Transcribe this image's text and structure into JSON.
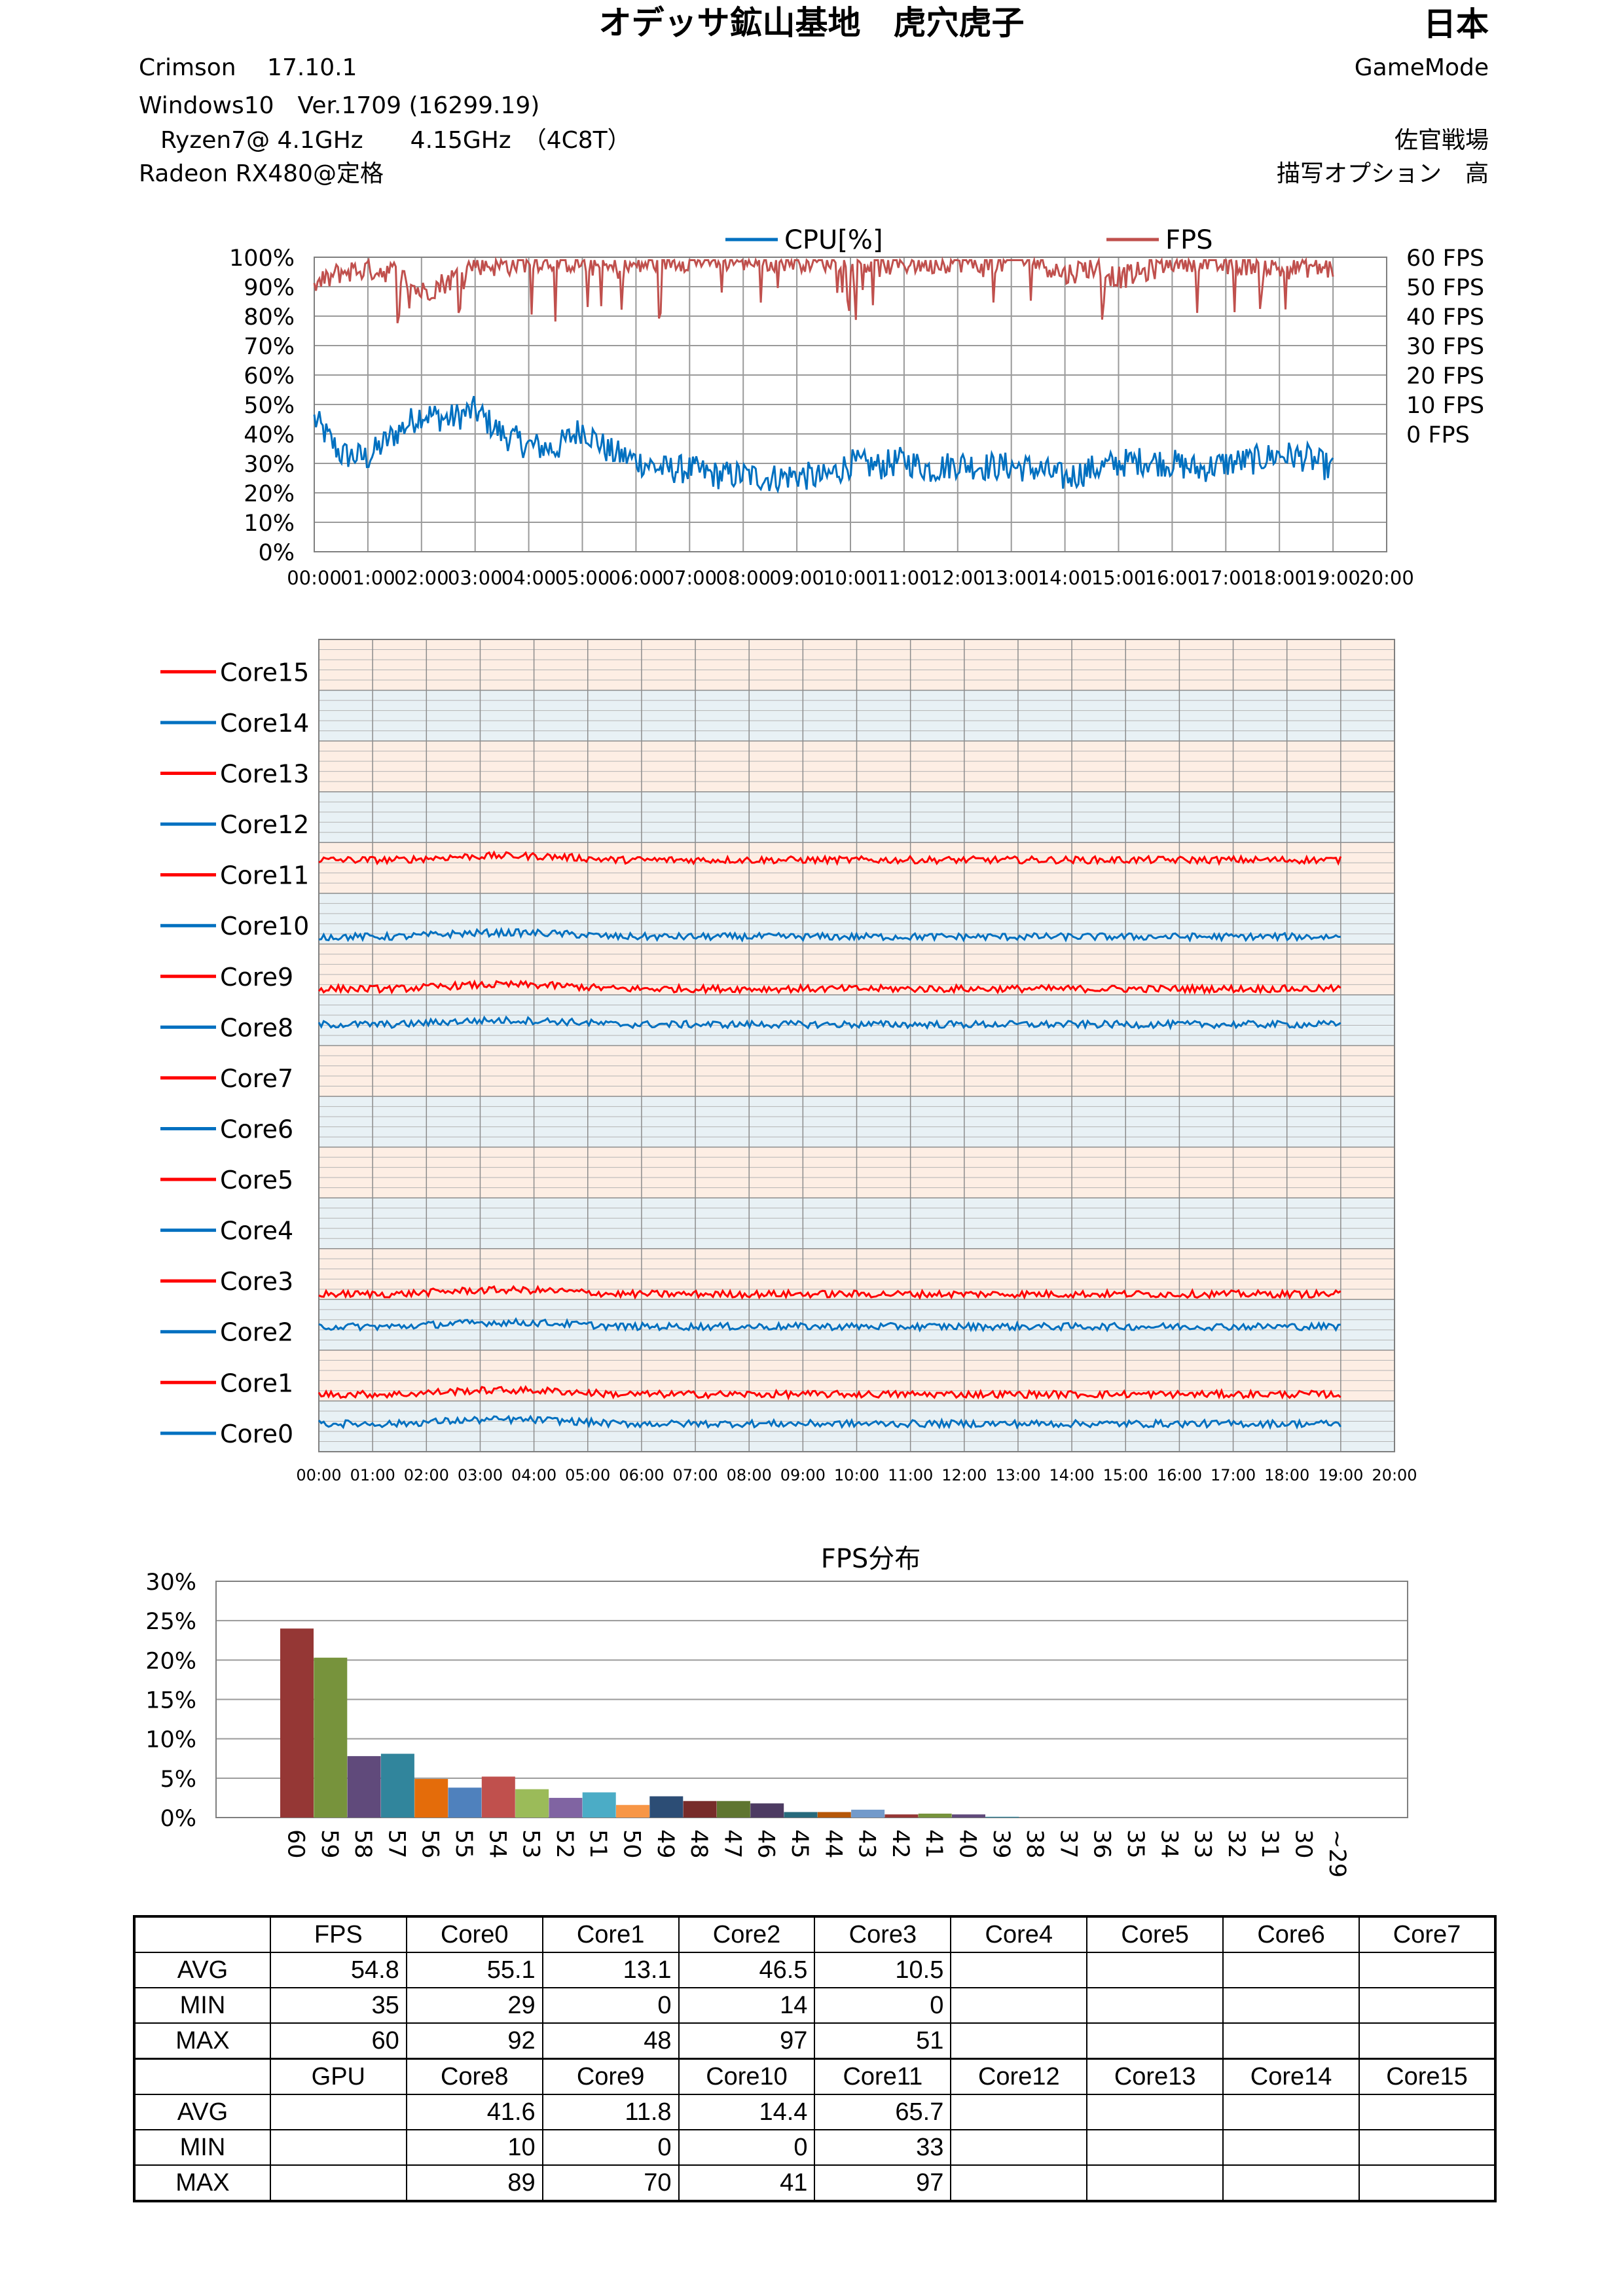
{
  "header": {
    "title": "オデッサ鉱山基地　虎穴虎子",
    "country": "日本",
    "driver": "Crimson　 17.10.1",
    "mode": "GameMode",
    "os": "Windows10　Ver.1709 (16299.19)",
    "cpu": "Ryzen7@ 4.1GHz　　4.15GHz　（4C8T）",
    "map": "佐官戦場",
    "gpu": "Radeon RX480@定格",
    "quality": "描写オプション　高"
  },
  "colors": {
    "cpu": "#0070c0",
    "fps": "#c0504d",
    "core_red": "#ff0000",
    "core_blue": "#0070c0",
    "band_orange": "#fdeee4",
    "band_blue": "#e8f1f5"
  },
  "chart_data": [
    {
      "type": "line",
      "legend": [
        "CPU[%]",
        "FPS"
      ],
      "x_ticks": [
        "00:00",
        "01:00",
        "02:00",
        "03:00",
        "04:00",
        "05:00",
        "06:00",
        "07:00",
        "08:00",
        "09:00",
        "10:00",
        "11:00",
        "12:00",
        "13:00",
        "14:00",
        "15:00",
        "16:00",
        "17:00",
        "18:00",
        "19:00",
        "20:00"
      ],
      "y_left_ticks": [
        "100%",
        "90%",
        "80%",
        "70%",
        "60%",
        "50%",
        "40%",
        "30%",
        "20%",
        "10%",
        "0%"
      ],
      "y_right_ticks": [
        "60 FPS",
        "50 FPS",
        "40 FPS",
        "30 FPS",
        "20 FPS",
        "10 FPS",
        "0 FPS"
      ],
      "xlim": [
        0,
        20
      ],
      "ylim_left": [
        0,
        100
      ],
      "series": [
        {
          "name": "CPU[%]",
          "axis": "left",
          "x": [
            0,
            0.5,
            1,
            1.5,
            2,
            2.5,
            3,
            3.5,
            4,
            4.5,
            5,
            5.5,
            6,
            6.5,
            7,
            7.5,
            8,
            8.5,
            9,
            9.5,
            10,
            10.5,
            11,
            11.5,
            12,
            12.5,
            13,
            13.5,
            14,
            14.5,
            15,
            15.5,
            16,
            16.5,
            17,
            17.5,
            18,
            18.5,
            19
          ],
          "values": [
            45,
            33,
            32,
            40,
            47,
            45,
            48,
            40,
            36,
            35,
            42,
            34,
            31,
            28,
            28,
            26,
            26,
            25,
            26,
            25,
            30,
            29,
            31,
            28,
            30,
            29,
            29,
            28,
            25,
            28,
            30,
            31,
            30,
            28,
            30,
            31,
            33,
            32,
            28
          ]
        },
        {
          "name": "FPS",
          "axis": "right",
          "x": [
            0,
            0.5,
            1,
            1.5,
            2,
            2.5,
            3,
            3.5,
            4,
            4.5,
            5,
            5.5,
            6,
            6.5,
            7,
            7.5,
            8,
            8.5,
            9,
            9.5,
            10,
            10.5,
            11,
            11.5,
            12,
            12.5,
            13,
            13.5,
            14,
            14.5,
            15,
            15.5,
            16,
            16.5,
            17,
            17.5,
            18,
            18.5,
            19
          ],
          "values": [
            90,
            95,
            96,
            95,
            88,
            92,
            98,
            97,
            99,
            99,
            98,
            96,
            97,
            99,
            99,
            99,
            99,
            99,
            99,
            99,
            99,
            97,
            98,
            98,
            99,
            97,
            99,
            99,
            94,
            97,
            93,
            95,
            99,
            99,
            97,
            98,
            96,
            97,
            96
          ]
        }
      ]
    },
    {
      "type": "line",
      "title": "",
      "categories": [
        "Core15",
        "Core14",
        "Core13",
        "Core12",
        "Core11",
        "Core10",
        "Core9",
        "Core8",
        "Core7",
        "Core6",
        "Core5",
        "Core4",
        "Core3",
        "Core2",
        "Core1",
        "Core0"
      ],
      "x_ticks": [
        "00:00",
        "01:00",
        "02:00",
        "03:00",
        "04:00",
        "05:00",
        "06:00",
        "07:00",
        "08:00",
        "09:00",
        "10:00",
        "11:00",
        "12:00",
        "13:00",
        "14:00",
        "15:00",
        "16:00",
        "17:00",
        "18:00",
        "19:00",
        "20:00"
      ],
      "xlim": [
        0,
        20
      ],
      "ylim_per_core": [
        0,
        100
      ],
      "series": [
        {
          "name": "Core11",
          "avg": 65.7
        },
        {
          "name": "Core10",
          "avg": 14.4
        },
        {
          "name": "Core9",
          "avg": 11.8
        },
        {
          "name": "Core8",
          "avg": 41.6
        },
        {
          "name": "Core3",
          "avg": 10.5
        },
        {
          "name": "Core2",
          "avg": 46.5
        },
        {
          "name": "Core1",
          "avg": 13.1
        },
        {
          "name": "Core0",
          "avg": 55.1
        }
      ]
    },
    {
      "type": "bar",
      "title": "FPS分布",
      "categories": [
        "60",
        "59",
        "58",
        "57",
        "56",
        "55",
        "54",
        "53",
        "52",
        "51",
        "50",
        "49",
        "48",
        "47",
        "46",
        "45",
        "44",
        "43",
        "42",
        "41",
        "40",
        "39",
        "38",
        "37",
        "36",
        "35",
        "34",
        "33",
        "32",
        "31",
        "30",
        "~29"
      ],
      "values": [
        24.0,
        20.3,
        7.8,
        8.1,
        4.9,
        3.8,
        5.2,
        3.6,
        2.5,
        3.2,
        1.6,
        2.7,
        2.1,
        2.1,
        1.8,
        0.7,
        0.7,
        1.0,
        0.4,
        0.5,
        0.4,
        0.1,
        0,
        0,
        0,
        0,
        0,
        0,
        0,
        0,
        0,
        0
      ],
      "y_ticks": [
        "30%",
        "25%",
        "20%",
        "15%",
        "10%",
        "5%",
        "0%"
      ],
      "ylim": [
        0,
        30
      ],
      "bar_colors": [
        "#953735",
        "#77933c",
        "#604a7b",
        "#31859c",
        "#e46c0a",
        "#4f81bd",
        "#c0504d",
        "#9bbb59",
        "#8064a2",
        "#4bacc6",
        "#f79646",
        "#2c4d75",
        "#772c2a",
        "#5f7530",
        "#4d3b62",
        "#276a7c",
        "#b65708",
        "#729aca"
      ]
    }
  ],
  "table": {
    "row1_headers": [
      "",
      "FPS",
      "Core0",
      "Core1",
      "Core2",
      "Core3",
      "Core4",
      "Core5",
      "Core6",
      "Core7"
    ],
    "row1": [
      [
        "AVG",
        "54.8",
        "55.1",
        "13.1",
        "46.5",
        "10.5",
        "",
        "",
        "",
        ""
      ],
      [
        "MIN",
        "35",
        "29",
        "0",
        "14",
        "0",
        "",
        "",
        "",
        ""
      ],
      [
        "MAX",
        "60",
        "92",
        "48",
        "97",
        "51",
        "",
        "",
        "",
        ""
      ]
    ],
    "row2_headers": [
      "",
      "GPU",
      "Core8",
      "Core9",
      "Core10",
      "Core11",
      "Core12",
      "Core13",
      "Core14",
      "Core15"
    ],
    "row2": [
      [
        "AVG",
        "",
        "41.6",
        "11.8",
        "14.4",
        "65.7",
        "",
        "",
        "",
        ""
      ],
      [
        "MIN",
        "",
        "10",
        "0",
        "0",
        "33",
        "",
        "",
        "",
        ""
      ],
      [
        "MAX",
        "",
        "89",
        "70",
        "41",
        "97",
        "",
        "",
        "",
        ""
      ]
    ]
  }
}
